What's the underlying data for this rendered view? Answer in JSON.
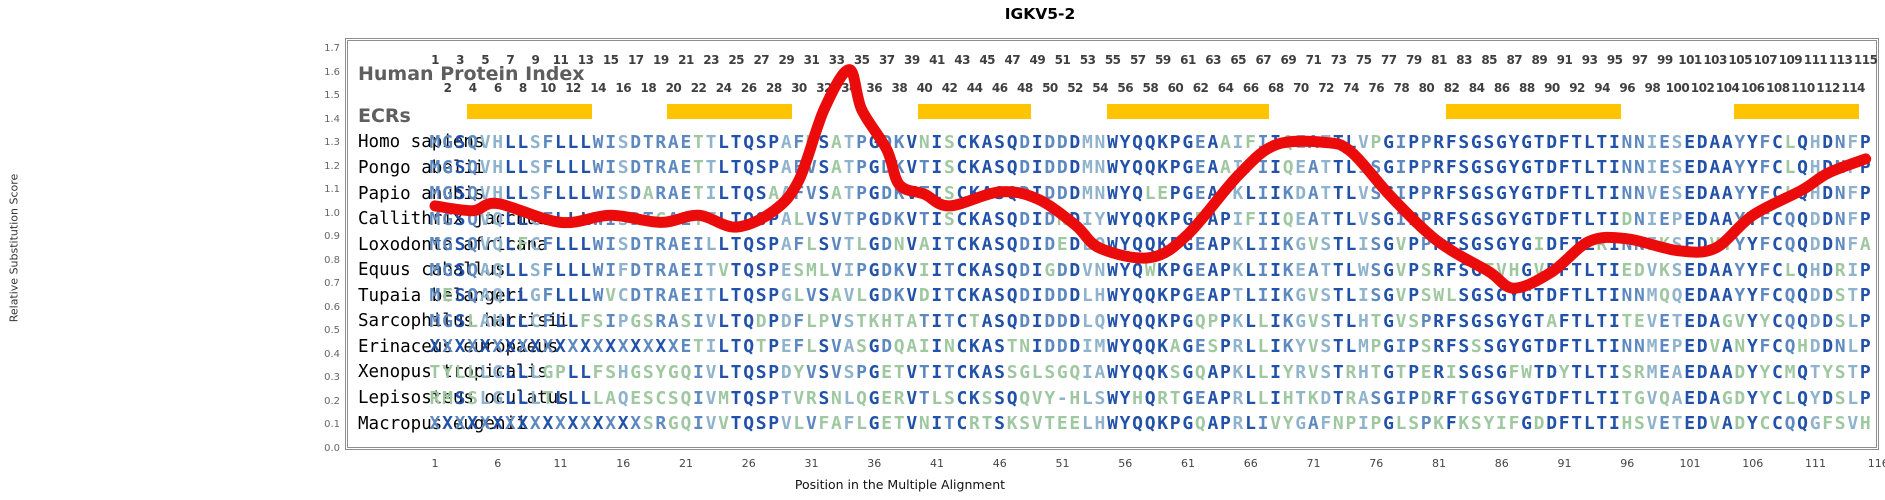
{
  "title": "IGKV5-2",
  "y_axis": {
    "label": "Relative Substitution Score",
    "ticks": [
      "0.0",
      "0.1",
      "0.2",
      "0.3",
      "0.4",
      "0.5",
      "0.6",
      "0.7",
      "0.8",
      "0.9",
      "1.0",
      "1.1",
      "1.2",
      "1.3",
      "1.4",
      "1.5",
      "1.6",
      "1.7"
    ]
  },
  "x_axis": {
    "label": "Position in the Multiple Alignment",
    "ticks": [
      1,
      6,
      11,
      16,
      21,
      26,
      31,
      36,
      41,
      46,
      51,
      56,
      61,
      66,
      71,
      76,
      81,
      86,
      91,
      96,
      101,
      106,
      111,
      116
    ]
  },
  "header": {
    "index_label": "Human Protein Index",
    "ecr_label": "ECRs",
    "odd_positions": [
      1,
      3,
      5,
      7,
      9,
      11,
      13,
      15,
      17,
      19,
      21,
      23,
      25,
      27,
      29,
      31,
      33,
      35,
      37,
      39,
      41,
      43,
      45,
      47,
      49,
      51,
      53,
      55,
      57,
      59,
      61,
      63,
      65,
      67,
      69,
      71,
      73,
      75,
      77,
      79,
      81,
      83,
      85,
      87,
      89,
      91,
      93,
      95,
      97,
      99,
      101,
      103,
      105,
      107,
      109,
      111,
      113,
      115
    ],
    "even_positions": [
      2,
      4,
      6,
      8,
      10,
      12,
      14,
      16,
      18,
      20,
      22,
      24,
      26,
      28,
      30,
      32,
      34,
      36,
      38,
      40,
      42,
      44,
      46,
      48,
      50,
      52,
      54,
      56,
      58,
      60,
      62,
      64,
      66,
      68,
      70,
      72,
      74,
      76,
      78,
      80,
      82,
      84,
      86,
      88,
      90,
      92,
      94,
      96,
      98,
      100,
      102,
      104,
      106,
      108,
      110,
      112,
      114
    ]
  },
  "ecr_bars": {
    "color": "#FFC400",
    "position_ranges": [
      [
        4,
        13
      ],
      [
        20,
        29
      ],
      [
        40,
        48
      ],
      [
        55,
        67
      ],
      [
        82,
        95
      ],
      [
        105,
        114
      ]
    ]
  },
  "sequence_palette": {
    "conserved": "#2151A8",
    "semi": "#5D89C0",
    "weak": "#8FB3CC",
    "mismatch": "#9FC8A1"
  },
  "alignment": {
    "rows": [
      {
        "species": "Homo sapiens",
        "sequence": "MGSQVHLLSFLLLWISDTRAETTLTQSPAFMSATPGDKVNISCKASQDIDDDMNWYQQKPGEAAIFIIQEATTLVPGIPPRFSGSGYGTDFTLTINNIESEDAAYYFCLQHDNFP"
      },
      {
        "species": "Pongo abelii",
        "sequence": "MGSQVHLLSFLLLWISDTRAETTLTQSPAFVSATPGDKVTISCKASQDIDDDMNWYQQKPGEAAIFIIQEATTLISGIPPRFSGSGYGTDFTLTINNIESEDAAYYFCLQHDNFP"
      },
      {
        "species": "Papio anubis",
        "sequence": "MGSQVHLLSFLLLWISDARAETILTQSAAFVSATPGDKVTISCKASQDIDDDMNWYQLEPGEAPKLIIKDATTLVSGIPPRFSGSGYGTDFTLTINNVESEDAAYYFCLQHDNFP"
      },
      {
        "species": "Callithrix jacchus",
        "sequence": "MGSQVQLLCFLLLWISDTGAETTLTQSPALVSVTPGDKVTISCKASQDIDNDIYWYQQKPGDAPIFIIQEATTLVSGIPPRFSGSGYGTDFTLTIDNIEPEDAAYYFCQQDDNFP"
      },
      {
        "species": "Loxodonta africana",
        "sequence": "MGSQVQLFCFLLLWISDTRAEILLTQSPAFLSVTLGDNVAITCKASQDIDEDLQWYQQKPGEAPKLIIKGVSTLISGVPPRFSGSGYGIDFTLRINNIKSEDVTYYFCQQDDNFA"
      },
      {
        "species": "Equus caballus",
        "sequence": "MGSQAQLLSFLLLWIFDTRAEITVTQSPESMLVIPGDKVIITCKASQDIGDDVNWYQWKPGEAPKLIIKEATTLWSGVPSRFSGTVHGVDFTLTIEDVKSEDAAYYFCLQHDRIP"
      },
      {
        "species": "Tupaia belangeri",
        "sequence": "MESQAQLLGFLLLWVCDTRAEITLTQSPGLVSAVLGDKVDITCKASQDIDDDLHWYQQKPGEAPTLIIKGVSTLISGVPSWLSGSGYGTDFTLTINNMQQEDAAYYFCQQDDSTP"
      },
      {
        "species": "Sarcophilus harrisii",
        "sequence": "MGSLAHLLCFLLFSIPGSRASIVLTQDPDFLPVSTKHTATITCTASQDIDDDLQWYQQKPGQPPKLLIKGVSTLHTGVSPRFSGSGYGTAFTLTITEVETEDAGVYYCQQDDSLP"
      },
      {
        "species": "Erinaceus europaeus",
        "sequence": "XXXXXXXXXXXXXXXXXXXXETILTQTPEFLSVASGDQAIINCKASTNIDDDIMWYQQKAGESPRLLIKYVSTLMPGIPSRFSSSGYGTDFTLTINNMEPEDVANYFCQHDDNLP"
      },
      {
        "species": "Xenopus tropicalis",
        "sequence": "TYLLLGLLLGPLLFSHGSYGQIVLTQSPDYVSVSPGETVTITCKASSGLSGQIAWYQQKSGQAPKLLIYRVSTRHTGTPERISGSGFWTDYTLTISRMEAEDAADYYCMQTYSTP"
      },
      {
        "species": "Lepisosteus oculatus",
        "sequence": "RMSSLGLLLTLLLLAQESCSQIVMTQSPTVRSNLQGERVTLSCKSSQQVY-HLSWYHQRTGEAPRLLIHTKDTRASGIPDRFTGSGYGTDFTLTITGVQAEDAGDYYCLQYDSLP"
      },
      {
        "species": "Macropus eugenii",
        "sequence": "XXXXXXXXXXXXXXXXXSRGQIVVTQSPVLVFAFLGETVNITCRTSKSVTEELHWYQQKPGQAPRLIVYGAFNPIPGLSPKFKSYIFGDDFTLTIHSVETEDVADYCCQQGFSVH"
      }
    ]
  },
  "chart_data": {
    "type": "line",
    "title": "IGKV5-2",
    "xlabel": "Position in the Multiple Alignment",
    "ylabel": "Relative Substitution Score",
    "xlim": [
      1,
      116
    ],
    "ylim": [
      0.0,
      1.7
    ],
    "x_ticks": [
      1,
      6,
      11,
      16,
      21,
      26,
      31,
      36,
      41,
      46,
      51,
      56,
      61,
      66,
      71,
      76,
      81,
      86,
      91,
      96,
      101,
      106,
      111,
      116
    ],
    "grid": false,
    "legend": "none",
    "series": [
      {
        "name": "relative-substitution-score",
        "color": "#EB0B0B",
        "x": [
          1,
          4,
          6,
          11,
          15,
          19,
          22,
          25,
          28,
          30,
          32,
          34,
          35,
          37,
          38,
          40,
          42,
          46,
          49,
          52,
          54,
          58,
          61,
          65,
          68,
          72,
          74,
          77,
          80,
          82,
          85,
          87,
          90,
          93,
          96,
          100,
          103,
          106,
          110,
          112,
          115
        ],
        "y": [
          1.03,
          1.01,
          1.04,
          0.96,
          0.99,
          0.96,
          0.99,
          0.94,
          1.01,
          1.14,
          1.44,
          1.61,
          1.44,
          1.27,
          1.12,
          1.08,
          1.03,
          1.09,
          1.06,
          0.95,
          0.85,
          0.81,
          0.91,
          1.16,
          1.29,
          1.3,
          1.26,
          1.08,
          0.92,
          0.84,
          0.75,
          0.68,
          0.75,
          0.88,
          0.89,
          0.84,
          0.85,
          0.99,
          1.1,
          1.17,
          1.23
        ]
      }
    ],
    "ecr_regions": [
      [
        4,
        13
      ],
      [
        20,
        29
      ],
      [
        40,
        48
      ],
      [
        55,
        67
      ],
      [
        82,
        95
      ],
      [
        105,
        114
      ]
    ]
  }
}
